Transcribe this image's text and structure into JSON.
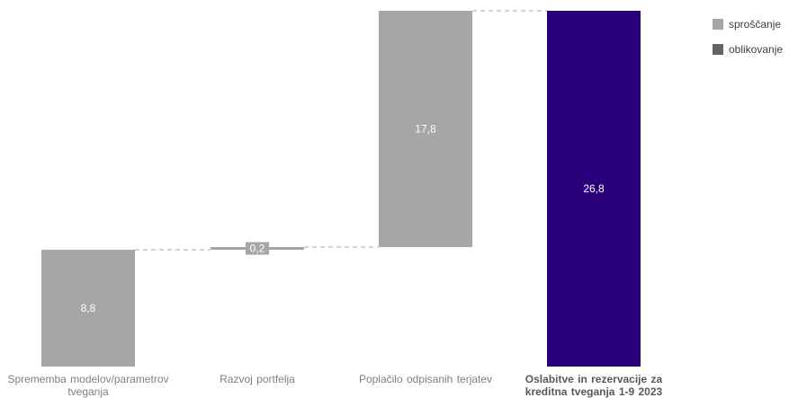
{
  "chart_data": {
    "type": "bar",
    "subtype": "waterfall",
    "categories": [
      "Sprememba modelov/parametrov tveganja",
      "Razvoj portfelja",
      "Poplačilo odpisanih terjatev",
      "Oslabitve in rezervacije za kreditna tveganja 1-9 2023"
    ],
    "values": [
      8.8,
      0.2,
      17.8,
      26.8
    ],
    "value_labels": [
      "8,8",
      "0,2",
      "17,8",
      "26,8"
    ],
    "bar_roles": [
      "sproščanje",
      "sproščanje",
      "sproščanje",
      "total"
    ],
    "connectors": true,
    "ylim": [
      0,
      26.8
    ],
    "grid": false,
    "legend_position": "top-right",
    "legend": [
      {
        "label": "sproščanje",
        "color": "#a6a6a8"
      },
      {
        "label": "oblikovanje",
        "color": "#636363"
      }
    ],
    "colors": {
      "release": "#a6a6a8",
      "total": "#29007a",
      "connector": "#a6a6a6",
      "value_label": "#ffffff"
    }
  }
}
